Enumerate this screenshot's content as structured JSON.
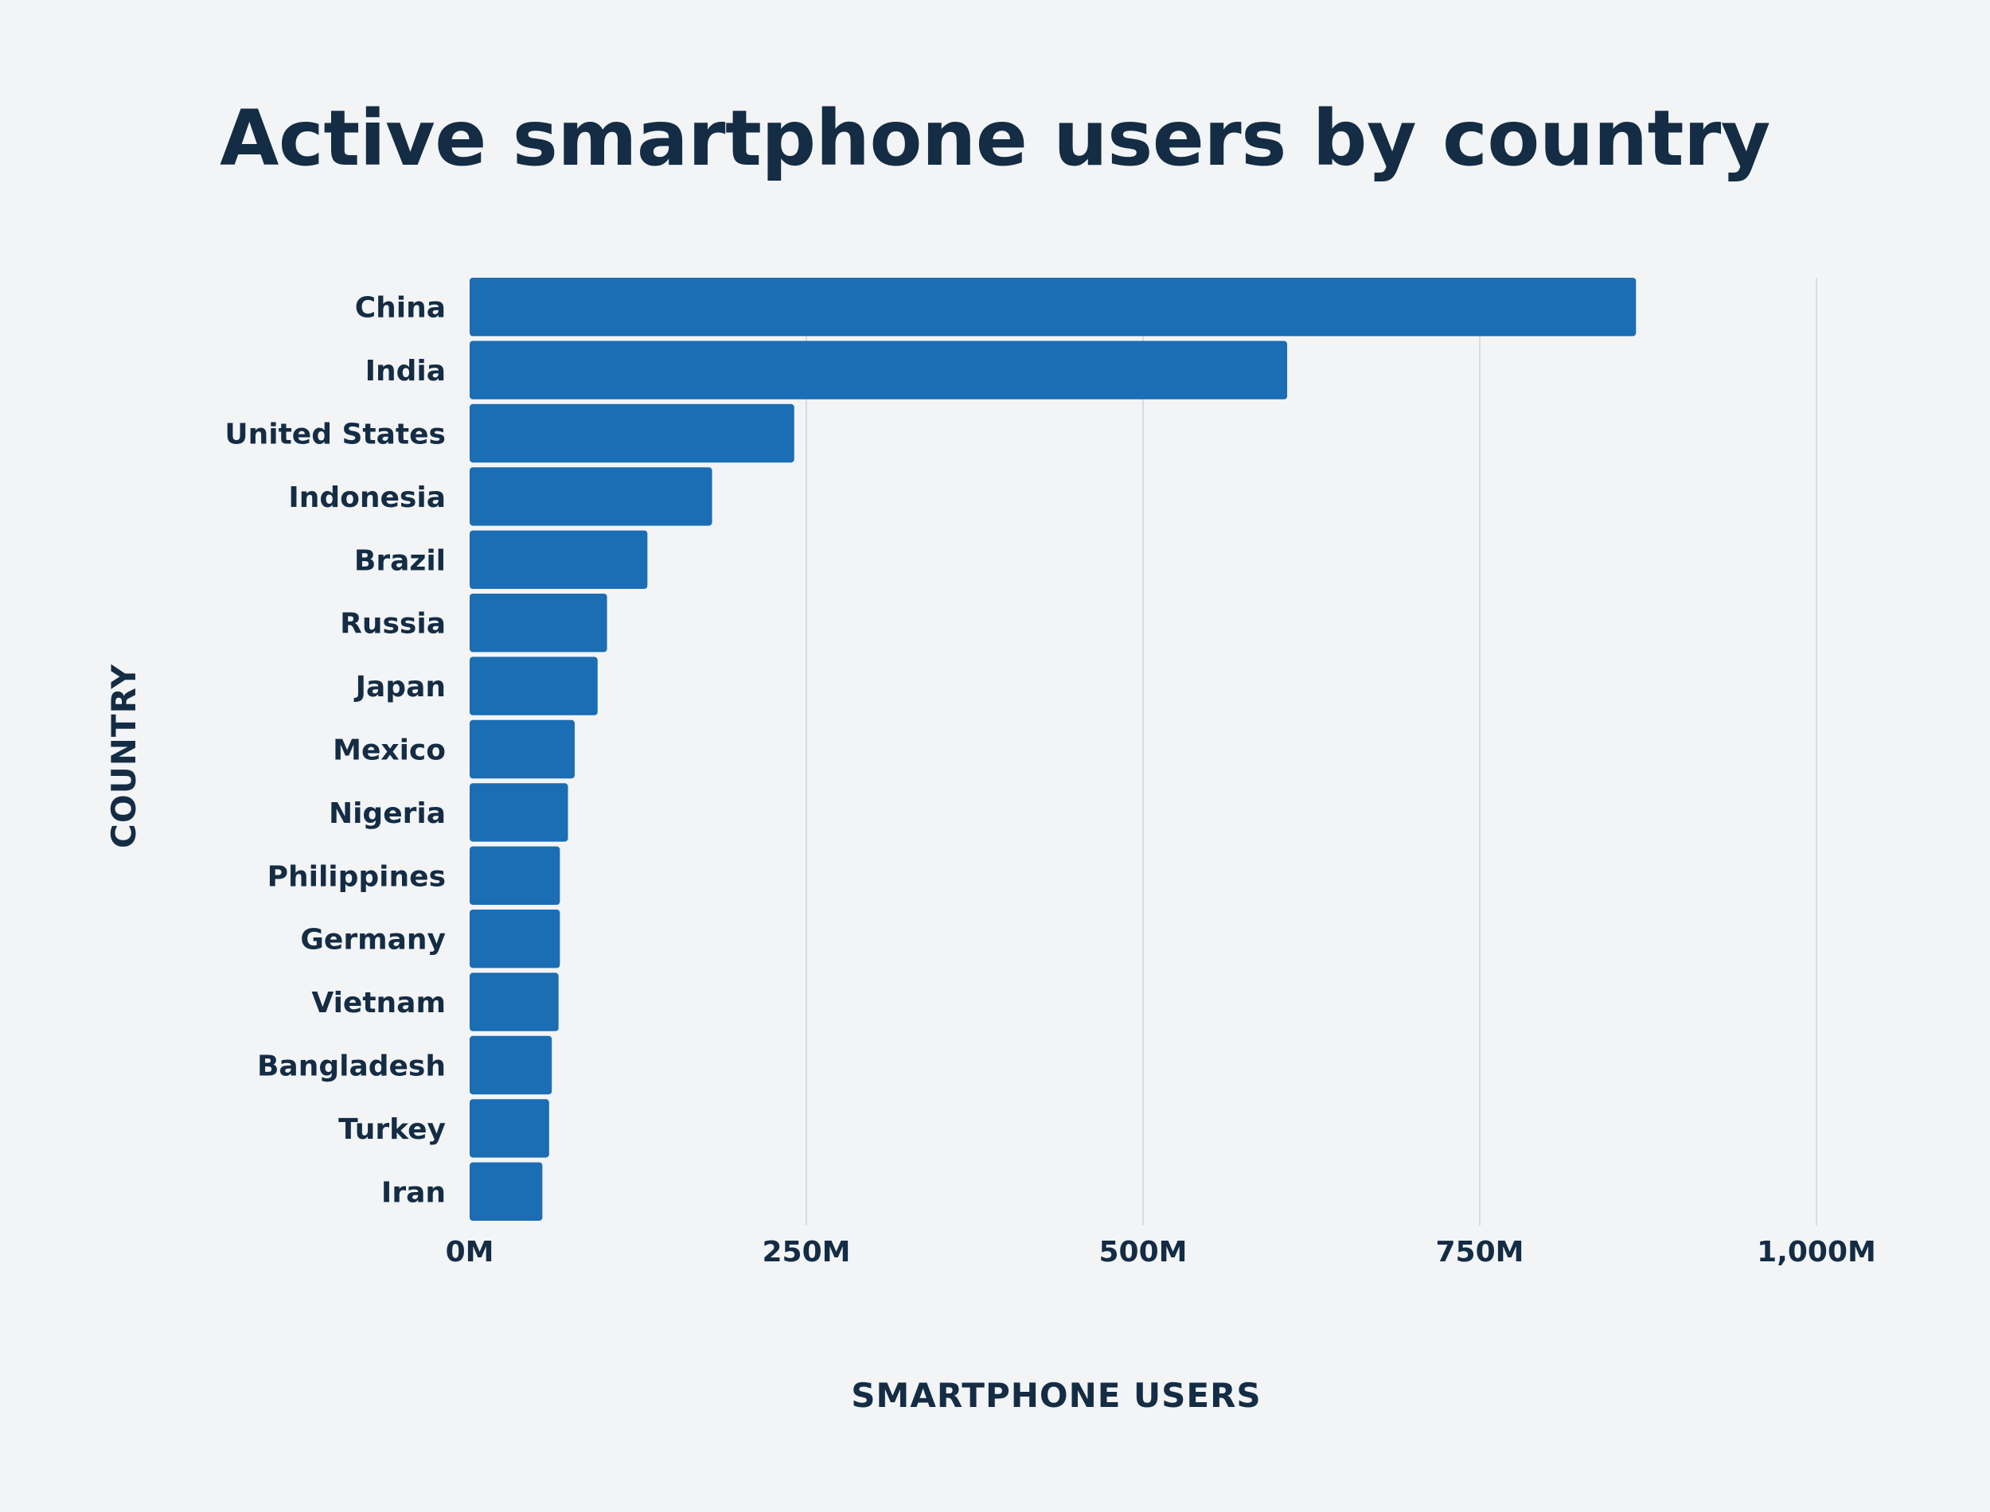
{
  "chart_data": {
    "type": "bar",
    "orientation": "horizontal",
    "title": "Active smartphone users by country",
    "xlabel": "SMARTPHONE USERS",
    "ylabel": "COUNTRY",
    "categories": [
      "China",
      "India",
      "United States",
      "Indonesia",
      "Brazil",
      "Russia",
      "Japan",
      "Mexico",
      "Nigeria",
      "Philippines",
      "Germany",
      "Vietnam",
      "Bangladesh",
      "Turkey",
      "Iran"
    ],
    "values": [
      866,
      607,
      241,
      180,
      132,
      102,
      95,
      78,
      73,
      67,
      67,
      66,
      61,
      59,
      54
    ],
    "value_unit": "M",
    "xlim": [
      0,
      1000
    ],
    "xticks": [
      0,
      250,
      500,
      750,
      1000
    ],
    "xtick_labels": [
      "0M",
      "250M",
      "500M",
      "750M",
      "1,000M"
    ],
    "grid": "vertical",
    "legend": "none",
    "colors": {
      "bar": "#1b6db4",
      "grid": "#d9dcdf",
      "text": "#142c44",
      "background": "#f2f4f6"
    }
  }
}
